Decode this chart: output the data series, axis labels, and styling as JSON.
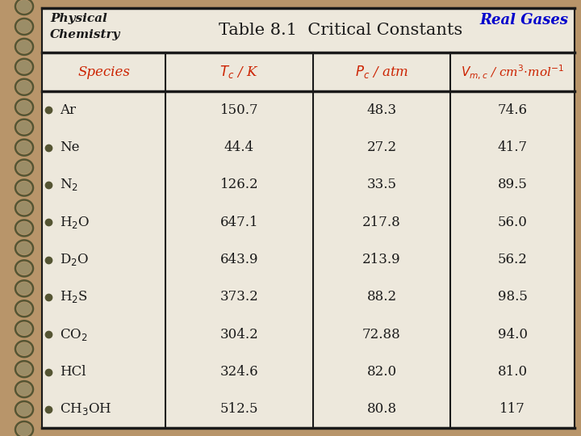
{
  "title": "Table 8.1  Critical Constants",
  "top_left_line1": "Physical",
  "top_left_line2": "Chemistry",
  "top_right": "Real Gases",
  "bg_color": "#b8956a",
  "table_bg": "#ede8dc",
  "header_color": "#cc2200",
  "real_gases_color": "#0000cc",
  "text_color": "#1a1a1a",
  "title_color": "#1a1a1a",
  "species": [
    "Ar",
    "Ne",
    "N$_2$",
    "H$_2$O",
    "D$_2$O",
    "H$_2$S",
    "CO$_2$",
    "HCl",
    "CH$_3$OH"
  ],
  "tc": [
    "150.7",
    "44.4",
    "126.2",
    "647.1",
    "643.9",
    "373.2",
    "304.2",
    "324.6",
    "512.5"
  ],
  "pc": [
    "48.3",
    "27.2",
    "33.5",
    "217.8",
    "213.9",
    "88.2",
    "72.88",
    "82.0",
    "80.8"
  ],
  "vc": [
    "74.6",
    "41.7",
    "89.5",
    "56.0",
    "56.2",
    "98.5",
    "94.0",
    "81.0",
    "117"
  ],
  "col_header_species": "Species",
  "col_header_tc": "$T_c$ / K",
  "col_header_pc": "$P_c$ / atm",
  "col_header_vc": "$V_{m,c}$ / cm$^3$$\\cdot$mol$^{-1}$"
}
